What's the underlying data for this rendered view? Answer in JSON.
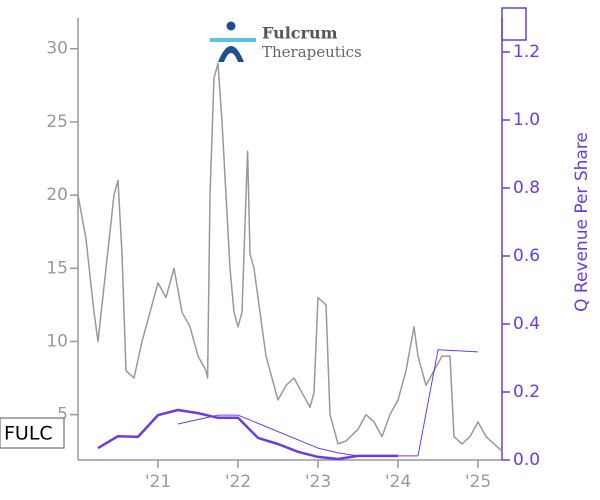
{
  "chart_data": {
    "type": "line",
    "ticker": "FULC",
    "logo_text": [
      "Fulcrum",
      "Therapeutics"
    ],
    "y2label": "Q Revenue Per Share",
    "xlim": [
      2020.0,
      2025.3
    ],
    "xticks": [
      {
        "value": 2021,
        "label": "'21"
      },
      {
        "value": 2022,
        "label": "'22"
      },
      {
        "value": 2023,
        "label": "'23"
      },
      {
        "value": 2024,
        "label": "'24"
      },
      {
        "value": 2025,
        "label": "'25"
      }
    ],
    "ylim": [
      1.9,
      32.1
    ],
    "yticks": [
      5,
      10,
      15,
      20,
      25,
      30
    ],
    "y2lim": [
      0,
      1.3
    ],
    "y2ticks": [
      {
        "value": 0,
        "label": "0.0"
      },
      {
        "value": 0.2,
        "label": "0.2"
      },
      {
        "value": 0.4,
        "label": "0.4"
      },
      {
        "value": 0.6,
        "label": "0.6"
      },
      {
        "value": 0.8,
        "label": "0.8"
      },
      {
        "value": 1.0,
        "label": "1.0"
      },
      {
        "value": 1.2,
        "label": "1.2"
      }
    ],
    "series": [
      {
        "color": "#999999",
        "width": 1.5,
        "x": [
          2020.0,
          2020.1,
          2020.2,
          2020.25,
          2020.35,
          2020.45,
          2020.5,
          2020.55,
          2020.6,
          2020.7,
          2020.8,
          2020.9,
          2021.0,
          2021.1,
          2021.2,
          2021.3,
          2021.4,
          2021.5,
          2021.6,
          2021.62,
          2021.65,
          2021.7,
          2021.75,
          2021.8,
          2021.85,
          2021.9,
          2021.95,
          2022.0,
          2022.05,
          2022.1,
          2022.12,
          2022.15,
          2022.2,
          2022.3,
          2022.35,
          2022.4,
          2022.5,
          2022.6,
          2022.7,
          2022.8,
          2022.9,
          2022.95,
          2023.0,
          2023.1,
          2023.15,
          2023.25,
          2023.35,
          2023.5,
          2023.6,
          2023.7,
          2023.8,
          2023.9,
          2024.0,
          2024.1,
          2024.2,
          2024.25,
          2024.35,
          2024.45,
          2024.55,
          2024.65,
          2024.7,
          2024.8,
          2024.9,
          2025.0,
          2025.1,
          2025.2,
          2025.3
        ],
        "values": [
          20,
          17,
          12,
          10,
          15,
          20,
          21,
          16,
          8,
          7.5,
          10,
          12,
          14,
          13,
          15,
          12,
          11,
          9,
          8,
          7.5,
          20,
          28,
          29,
          25,
          20,
          15,
          12,
          11,
          12,
          20,
          23,
          16,
          15,
          11,
          9,
          8,
          6,
          7,
          7.5,
          6.5,
          5.5,
          6.5,
          13,
          12.5,
          5,
          3,
          3.2,
          4,
          5,
          4.5,
          3.5,
          5,
          6,
          8,
          11,
          9,
          7,
          8,
          9,
          9,
          3.5,
          3,
          3.5,
          4.5,
          3.5,
          3,
          2.5
        ]
      },
      {
        "color": "#6a3ce6",
        "width": 2.5,
        "axis": "y2",
        "x": [
          2020.25,
          2020.5,
          2020.75,
          2021.0,
          2021.25,
          2021.5,
          2021.75,
          2022.0,
          2022.25,
          2022.5,
          2022.75,
          2023.0,
          2023.25,
          2023.5,
          2023.75,
          2024.0
        ],
        "values": [
          0.035,
          0.07,
          0.068,
          0.132,
          0.147,
          0.138,
          0.124,
          0.124,
          0.065,
          0.047,
          0.024,
          0.009,
          0.003,
          0.012,
          0.012,
          0.012
        ]
      },
      {
        "color": "#6a3ce6",
        "width": 1,
        "axis": "y2",
        "x": [
          2021.25,
          2021.75,
          2022.0,
          2023.0,
          2023.25,
          2023.5,
          2024.25,
          2024.5,
          2025.0
        ],
        "values": [
          0.106,
          0.132,
          0.132,
          0.035,
          0.021,
          0.012,
          0.012,
          0.324,
          0.318
        ]
      }
    ]
  }
}
